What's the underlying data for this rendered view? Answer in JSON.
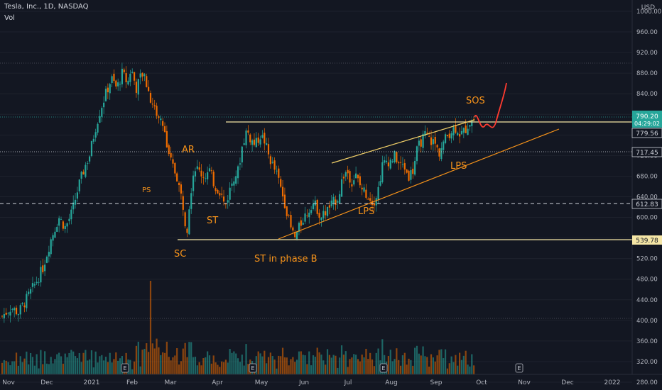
{
  "header": {
    "symbol": "Tesla, Inc., 1D, NASDAQ",
    "volume_label": "Vol",
    "currency": "USD"
  },
  "chart_data": {
    "type": "candlestick",
    "price_ticks": [
      "1000.00",
      "960.00",
      "920.00",
      "880.00",
      "840.00",
      "800.00",
      "760.00",
      "720.00",
      "680.00",
      "640.00",
      "600.00",
      "560.00",
      "520.00",
      "480.00",
      "440.00",
      "400.00",
      "360.00",
      "320.00",
      "280.00"
    ],
    "x_labels": [
      "Nov",
      "Dec",
      "2021",
      "Feb",
      "Mar",
      "Apr",
      "May",
      "Jun",
      "Jul",
      "Aug",
      "Sep",
      "Oct",
      "Nov",
      "Dec",
      "2022"
    ],
    "ylim": [
      270,
      1010
    ],
    "price_labels": {
      "current_price": "790.20",
      "countdown": "04:29:02",
      "level_1": "779.56",
      "level_2": "717.45",
      "level_3": "612.83",
      "level_4": "539.78"
    },
    "levels": {
      "current": 790.2,
      "range_top": 779.56,
      "resistance": 717.45,
      "dashed": 612.83,
      "range_bottom": 539.78
    },
    "annotations": [
      "SOS",
      "AR",
      "PS",
      "ST",
      "SC",
      "ST in phase B",
      "LPS",
      "LPS"
    ],
    "earnings_markers": [
      "E",
      "E",
      "E",
      "E"
    ],
    "anchors": [
      [
        0,
        408
      ],
      [
        8,
        425
      ],
      [
        15,
        415
      ],
      [
        22,
        440
      ],
      [
        30,
        470
      ],
      [
        37,
        500
      ],
      [
        45,
        560
      ],
      [
        52,
        600
      ],
      [
        58,
        580
      ],
      [
        64,
        610
      ],
      [
        70,
        660
      ],
      [
        76,
        700
      ],
      [
        80,
        720
      ],
      [
        85,
        770
      ],
      [
        90,
        810
      ],
      [
        95,
        840
      ],
      [
        100,
        870
      ],
      [
        105,
        850
      ],
      [
        110,
        880
      ],
      [
        115,
        860
      ],
      [
        118,
        890
      ],
      [
        123,
        850
      ],
      [
        128,
        880
      ],
      [
        132,
        860
      ],
      [
        136,
        830
      ],
      [
        140,
        810
      ],
      [
        144,
        790
      ],
      [
        148,
        780
      ],
      [
        152,
        720
      ],
      [
        156,
        700
      ],
      [
        160,
        680
      ],
      [
        163,
        650
      ],
      [
        166,
        620
      ],
      [
        169,
        570
      ],
      [
        172,
        640
      ],
      [
        176,
        700
      ],
      [
        180,
        690
      ],
      [
        185,
        680
      ],
      [
        190,
        690
      ],
      [
        195,
        660
      ],
      [
        200,
        650
      ],
      [
        204,
        620
      ],
      [
        208,
        650
      ],
      [
        212,
        680
      ],
      [
        216,
        690
      ],
      [
        220,
        740
      ],
      [
        224,
        770
      ],
      [
        228,
        750
      ],
      [
        232,
        740
      ],
      [
        236,
        760
      ],
      [
        240,
        750
      ],
      [
        244,
        720
      ],
      [
        248,
        700
      ],
      [
        252,
        680
      ],
      [
        256,
        650
      ],
      [
        260,
        620
      ],
      [
        264,
        580
      ],
      [
        268,
        560
      ],
      [
        272,
        580
      ],
      [
        276,
        600
      ],
      [
        280,
        610
      ],
      [
        284,
        630
      ],
      [
        288,
        620
      ],
      [
        292,
        600
      ],
      [
        296,
        610
      ],
      [
        300,
        620
      ],
      [
        304,
        630
      ],
      [
        308,
        640
      ],
      [
        312,
        680
      ],
      [
        316,
        690
      ],
      [
        320,
        670
      ],
      [
        324,
        680
      ],
      [
        328,
        660
      ],
      [
        332,
        650
      ],
      [
        336,
        640
      ],
      [
        340,
        630
      ],
      [
        344,
        650
      ],
      [
        348,
        700
      ],
      [
        352,
        710
      ],
      [
        356,
        710
      ],
      [
        360,
        720
      ],
      [
        364,
        700
      ],
      [
        368,
        700
      ],
      [
        372,
        680
      ],
      [
        376,
        690
      ],
      [
        380,
        730
      ],
      [
        384,
        750
      ],
      [
        388,
        760
      ],
      [
        392,
        750
      ],
      [
        396,
        745
      ],
      [
        400,
        725
      ],
      [
        404,
        745
      ],
      [
        408,
        760
      ],
      [
        412,
        770
      ],
      [
        416,
        775
      ],
      [
        420,
        760
      ],
      [
        424,
        770
      ],
      [
        428,
        785
      ],
      [
        432,
        792
      ]
    ]
  }
}
